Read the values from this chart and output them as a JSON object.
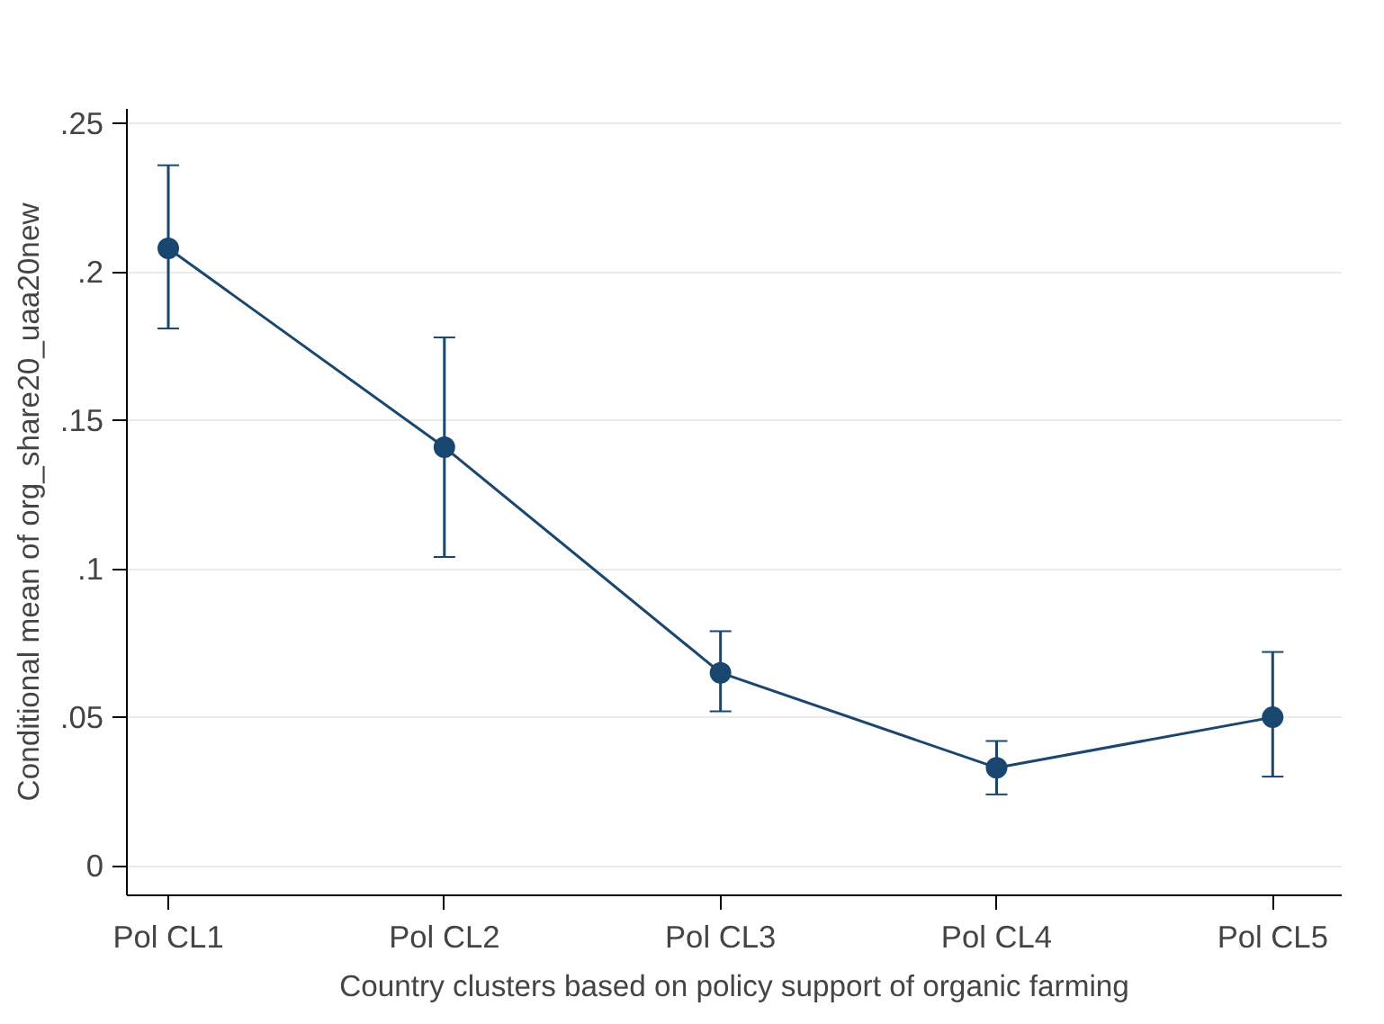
{
  "chart_data": {
    "type": "line",
    "xlabel": "Country clusters based on policy support of organic farming",
    "ylabel": "Conditional mean of org_share20_uaa20new",
    "categories": [
      "Pol CL1",
      "Pol CL2",
      "Pol CL3",
      "Pol CL4",
      "Pol CL5"
    ],
    "series": [
      {
        "color": "#1a476f",
        "values": [
          0.208,
          0.141,
          0.065,
          0.033,
          0.05
        ],
        "errors": [
          [
            0.181,
            0.236
          ],
          [
            0.104,
            0.178
          ],
          [
            0.052,
            0.079
          ],
          [
            0.024,
            0.042
          ],
          [
            0.03,
            0.072
          ]
        ]
      }
    ],
    "ylim": [
      -0.01,
      0.255
    ],
    "yticks": [
      {
        "value": 0,
        "label": "0"
      },
      {
        "value": 0.05,
        "label": ".05"
      },
      {
        "value": 0.1,
        "label": ".1"
      },
      {
        "value": 0.15,
        "label": ".15"
      },
      {
        "value": 0.2,
        "label": ".2"
      },
      {
        "value": 0.25,
        "label": ".25"
      }
    ],
    "grid": "y",
    "marker": "circle",
    "line_style": "solid"
  }
}
